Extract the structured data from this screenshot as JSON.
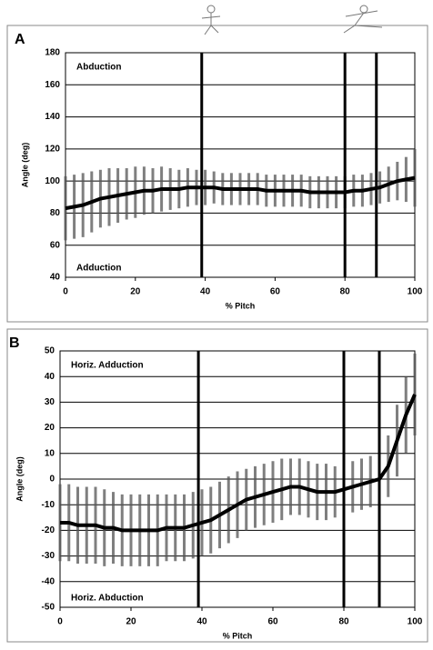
{
  "chart_data": [
    {
      "type": "line",
      "panel_label": "A",
      "y_label": "Angle (deg)",
      "x_label": "% Pitch",
      "annotations": [
        "Abduction",
        "Adduction"
      ],
      "x": [
        0,
        2.5,
        5,
        7.5,
        10,
        12.5,
        15,
        17.5,
        20,
        22.5,
        25,
        27.5,
        30,
        32.5,
        35,
        37.5,
        40,
        42.5,
        45,
        47.5,
        50,
        52.5,
        55,
        57.5,
        60,
        62.5,
        65,
        67.5,
        70,
        72.5,
        75,
        77.5,
        80,
        82.5,
        85,
        87.5,
        90,
        92.5,
        95,
        97.5,
        100
      ],
      "values": [
        83,
        84,
        85,
        87,
        89,
        90,
        91,
        92,
        93,
        94,
        94,
        95,
        95,
        95,
        96,
        96,
        96,
        96,
        95,
        95,
        95,
        95,
        95,
        94,
        94,
        94,
        94,
        94,
        93,
        93,
        93,
        93,
        93,
        94,
        94,
        95,
        96,
        98,
        100,
        101,
        102
      ],
      "errors": [
        20,
        20,
        20,
        19,
        18,
        18,
        17,
        16,
        16,
        15,
        14,
        14,
        13,
        12,
        12,
        11,
        11,
        10,
        10,
        10,
        10,
        10,
        10,
        10,
        10,
        10,
        10,
        10,
        10,
        10,
        10,
        10,
        10,
        10,
        10,
        10,
        10,
        11,
        12,
        14,
        18
      ],
      "color": "#000000",
      "error_color": "#555555",
      "vlines": [
        39,
        80,
        89
      ],
      "xlim": [
        0,
        100
      ],
      "xticks": [
        0,
        20,
        40,
        60,
        80,
        100
      ],
      "ylim": [
        40,
        180
      ],
      "yticks": [
        40,
        60,
        80,
        100,
        120,
        140,
        160,
        180
      ],
      "grid": true
    },
    {
      "type": "line",
      "panel_label": "B",
      "y_label": "Angle (deg)",
      "x_label": "% Pitch",
      "annotations": [
        "Horiz. Adduction",
        "Horiz. Abduction"
      ],
      "x": [
        0,
        2.5,
        5,
        7.5,
        10,
        12.5,
        15,
        17.5,
        20,
        22.5,
        25,
        27.5,
        30,
        32.5,
        35,
        37.5,
        40,
        42.5,
        45,
        47.5,
        50,
        52.5,
        55,
        57.5,
        60,
        62.5,
        65,
        67.5,
        70,
        72.5,
        75,
        77.5,
        80,
        82.5,
        85,
        87.5,
        90,
        92.5,
        95,
        97.5,
        100
      ],
      "values": [
        -17,
        -17,
        -18,
        -18,
        -18,
        -19,
        -19,
        -20,
        -20,
        -20,
        -20,
        -20,
        -19,
        -19,
        -19,
        -18,
        -17,
        -16,
        -14,
        -12,
        -10,
        -8,
        -7,
        -6,
        -5,
        -4,
        -3,
        -3,
        -4,
        -5,
        -5,
        -5,
        -4,
        -3,
        -2,
        -1,
        0,
        5,
        15,
        25,
        33
      ],
      "errors": [
        15,
        15,
        15,
        15,
        15,
        15,
        14,
        14,
        14,
        14,
        14,
        14,
        13,
        13,
        13,
        13,
        13,
        13,
        13,
        13,
        13,
        12,
        12,
        12,
        12,
        12,
        11,
        11,
        11,
        11,
        11,
        10,
        10,
        10,
        10,
        10,
        10,
        12,
        14,
        15,
        16
      ],
      "color": "#000000",
      "error_color": "#555555",
      "vlines": [
        39,
        80,
        90
      ],
      "xlim": [
        0,
        100
      ],
      "xticks": [
        0,
        20,
        40,
        60,
        80,
        100
      ],
      "ylim": [
        -50,
        50
      ],
      "yticks": [
        -50,
        -40,
        -30,
        -20,
        -10,
        0,
        10,
        20,
        30,
        40,
        50
      ],
      "grid": true
    }
  ]
}
